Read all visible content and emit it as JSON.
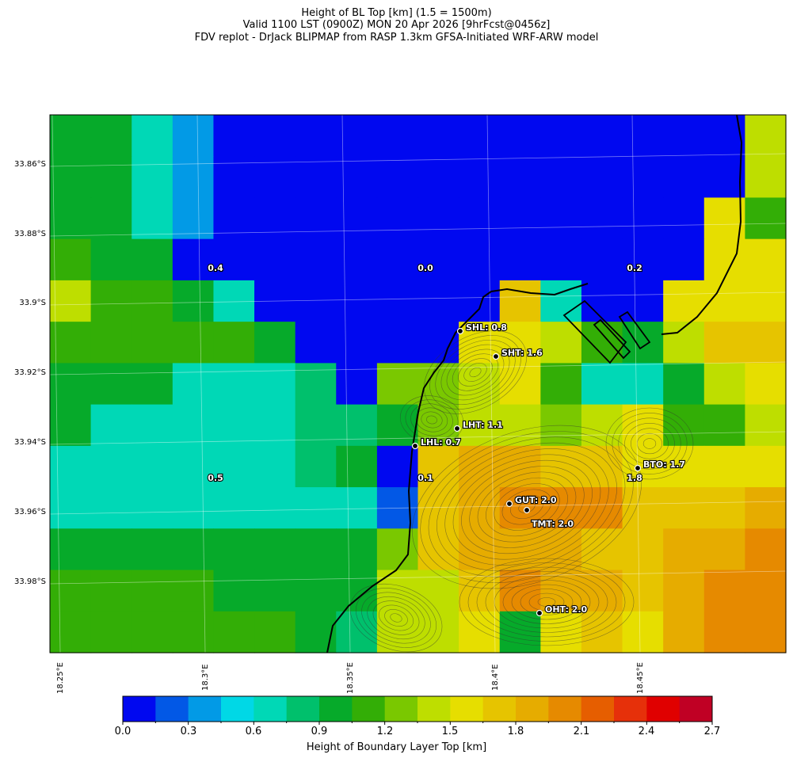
{
  "header": {
    "line1": "Height of BL Top [km] (1.5 = 1500m)",
    "line2": "Valid 1100 LST (0900Z) MON 20 Apr 2026 [9hrFcst@0456z]",
    "line3": "FDV replot - DrJack BLIPMAP from RASP 1.3km GFSA-Initiated WRF-ARW model"
  },
  "axes": {
    "lat_labels": [
      "33.86°S",
      "33.88°S",
      "33.9°S",
      "33.92°S",
      "33.94°S",
      "33.96°S",
      "33.98°S"
    ],
    "lon_labels": [
      "18.25°E",
      "18.3°E",
      "18.35°E",
      "18.4°E",
      "18.45°E"
    ]
  },
  "colorbar": {
    "label": "Height of Boundary Layer Top [km]",
    "ticks": [
      "0.0",
      "0.3",
      "0.6",
      "0.9",
      "1.2",
      "1.5",
      "1.8",
      "2.1",
      "2.4",
      "2.7"
    ],
    "range": [
      0.0,
      2.7
    ],
    "colors": [
      "#0008f0",
      "#0258e6",
      "#029ae6",
      "#00d8e6",
      "#00d8b6",
      "#00c06c",
      "#06aa2a",
      "#33ae06",
      "#7ac800",
      "#bede00",
      "#e6de00",
      "#e6c400",
      "#e6ac00",
      "#e68a00",
      "#e65e00",
      "#e6300a",
      "#e00000",
      "#c00024"
    ]
  },
  "grid": {
    "cols": 18,
    "rows": 13,
    "values": [
      [
        1.05,
        1.05,
        0.75,
        0.45,
        0.15,
        0.0,
        0.0,
        0.0,
        0.0,
        0.0,
        0.0,
        0.0,
        0.0,
        0.0,
        0.0,
        0.0,
        0.0,
        1.35
      ],
      [
        0.95,
        0.95,
        0.75,
        0.45,
        0.15,
        0.0,
        0.0,
        0.0,
        0.0,
        0.0,
        0.0,
        0.0,
        0.0,
        0.0,
        0.0,
        0.0,
        0.0,
        1.35
      ],
      [
        1.05,
        0.95,
        0.75,
        0.45,
        0.15,
        0.0,
        0.0,
        0.0,
        0.0,
        0.0,
        0.0,
        0.0,
        0.0,
        0.0,
        0.0,
        0.0,
        1.55,
        1.15
      ],
      [
        1.15,
        1.05,
        0.95,
        0.15,
        0.15,
        0.0,
        0.0,
        0.0,
        0.0,
        0.0,
        0.0,
        0.0,
        0.0,
        0.0,
        0.15,
        0.0,
        1.55,
        1.55
      ],
      [
        1.35,
        1.15,
        1.15,
        1.05,
        0.75,
        0.0,
        0.0,
        0.0,
        0.0,
        0.0,
        0.0,
        1.75,
        0.75,
        0.0,
        0.0,
        1.55,
        1.65,
        1.65
      ],
      [
        1.15,
        1.15,
        1.15,
        1.15,
        1.15,
        1.05,
        0.0,
        0.0,
        0.0,
        0.0,
        1.55,
        1.55,
        1.35,
        1.15,
        1.05,
        1.35,
        1.75,
        1.75
      ],
      [
        1.05,
        1.05,
        0.95,
        0.75,
        0.75,
        0.75,
        0.85,
        0.0,
        1.25,
        1.25,
        1.45,
        1.55,
        1.15,
        0.75,
        0.75,
        0.95,
        1.45,
        1.65
      ],
      [
        0.95,
        0.65,
        0.65,
        0.65,
        0.65,
        0.65,
        0.85,
        0.85,
        0.95,
        1.25,
        1.45,
        1.35,
        1.25,
        1.35,
        1.55,
        1.15,
        1.15,
        1.45
      ],
      [
        0.75,
        0.65,
        0.65,
        0.65,
        0.65,
        0.65,
        0.85,
        1.05,
        0.15,
        1.75,
        1.85,
        1.85,
        1.75,
        1.75,
        1.55,
        1.55,
        1.55,
        1.55
      ],
      [
        0.75,
        0.75,
        0.75,
        0.65,
        0.65,
        0.75,
        0.75,
        0.75,
        0.25,
        1.75,
        1.95,
        2.05,
        2.05,
        2.05,
        1.75,
        1.75,
        1.75,
        1.85
      ],
      [
        1.05,
        1.05,
        0.95,
        0.95,
        0.95,
        0.95,
        0.95,
        0.95,
        1.25,
        1.75,
        1.85,
        1.95,
        1.95,
        1.75,
        1.75,
        1.85,
        1.85,
        2.05
      ],
      [
        1.15,
        1.15,
        1.15,
        1.15,
        1.05,
        1.05,
        0.95,
        1.05,
        1.35,
        1.45,
        1.75,
        2.05,
        1.95,
        1.85,
        1.75,
        1.85,
        2.05,
        2.05
      ],
      [
        1.15,
        1.15,
        1.15,
        1.15,
        1.15,
        1.15,
        1.05,
        0.85,
        1.45,
        1.45,
        1.55,
        1.05,
        1.65,
        1.75,
        1.65,
        1.95,
        2.05,
        2.05
      ]
    ]
  },
  "value_labels": [
    "0.4",
    "0.0",
    "0.2",
    "0.5",
    "0.1",
    "1.8"
  ],
  "stations": [
    {
      "code": "SHL",
      "value": "0.8",
      "text": "SHL: 0.8"
    },
    {
      "code": "SHT",
      "value": "1.6",
      "text": "SHT: 1.6"
    },
    {
      "code": "LHT",
      "value": "1.1",
      "text": "LHT: 1.1"
    },
    {
      "code": "LHL",
      "value": "0.7",
      "text": "LHL: 0.7"
    },
    {
      "code": "BTO",
      "value": "1.7",
      "text": "BTO: 1.7"
    },
    {
      "code": "GUT",
      "value": "2.0",
      "text": "GUT: 2.0"
    },
    {
      "code": "TMT",
      "value": "2.0",
      "text": "TMT: 2.0"
    },
    {
      "code": "OHT",
      "value": "2.0",
      "text": "OHT: 2.0"
    }
  ]
}
